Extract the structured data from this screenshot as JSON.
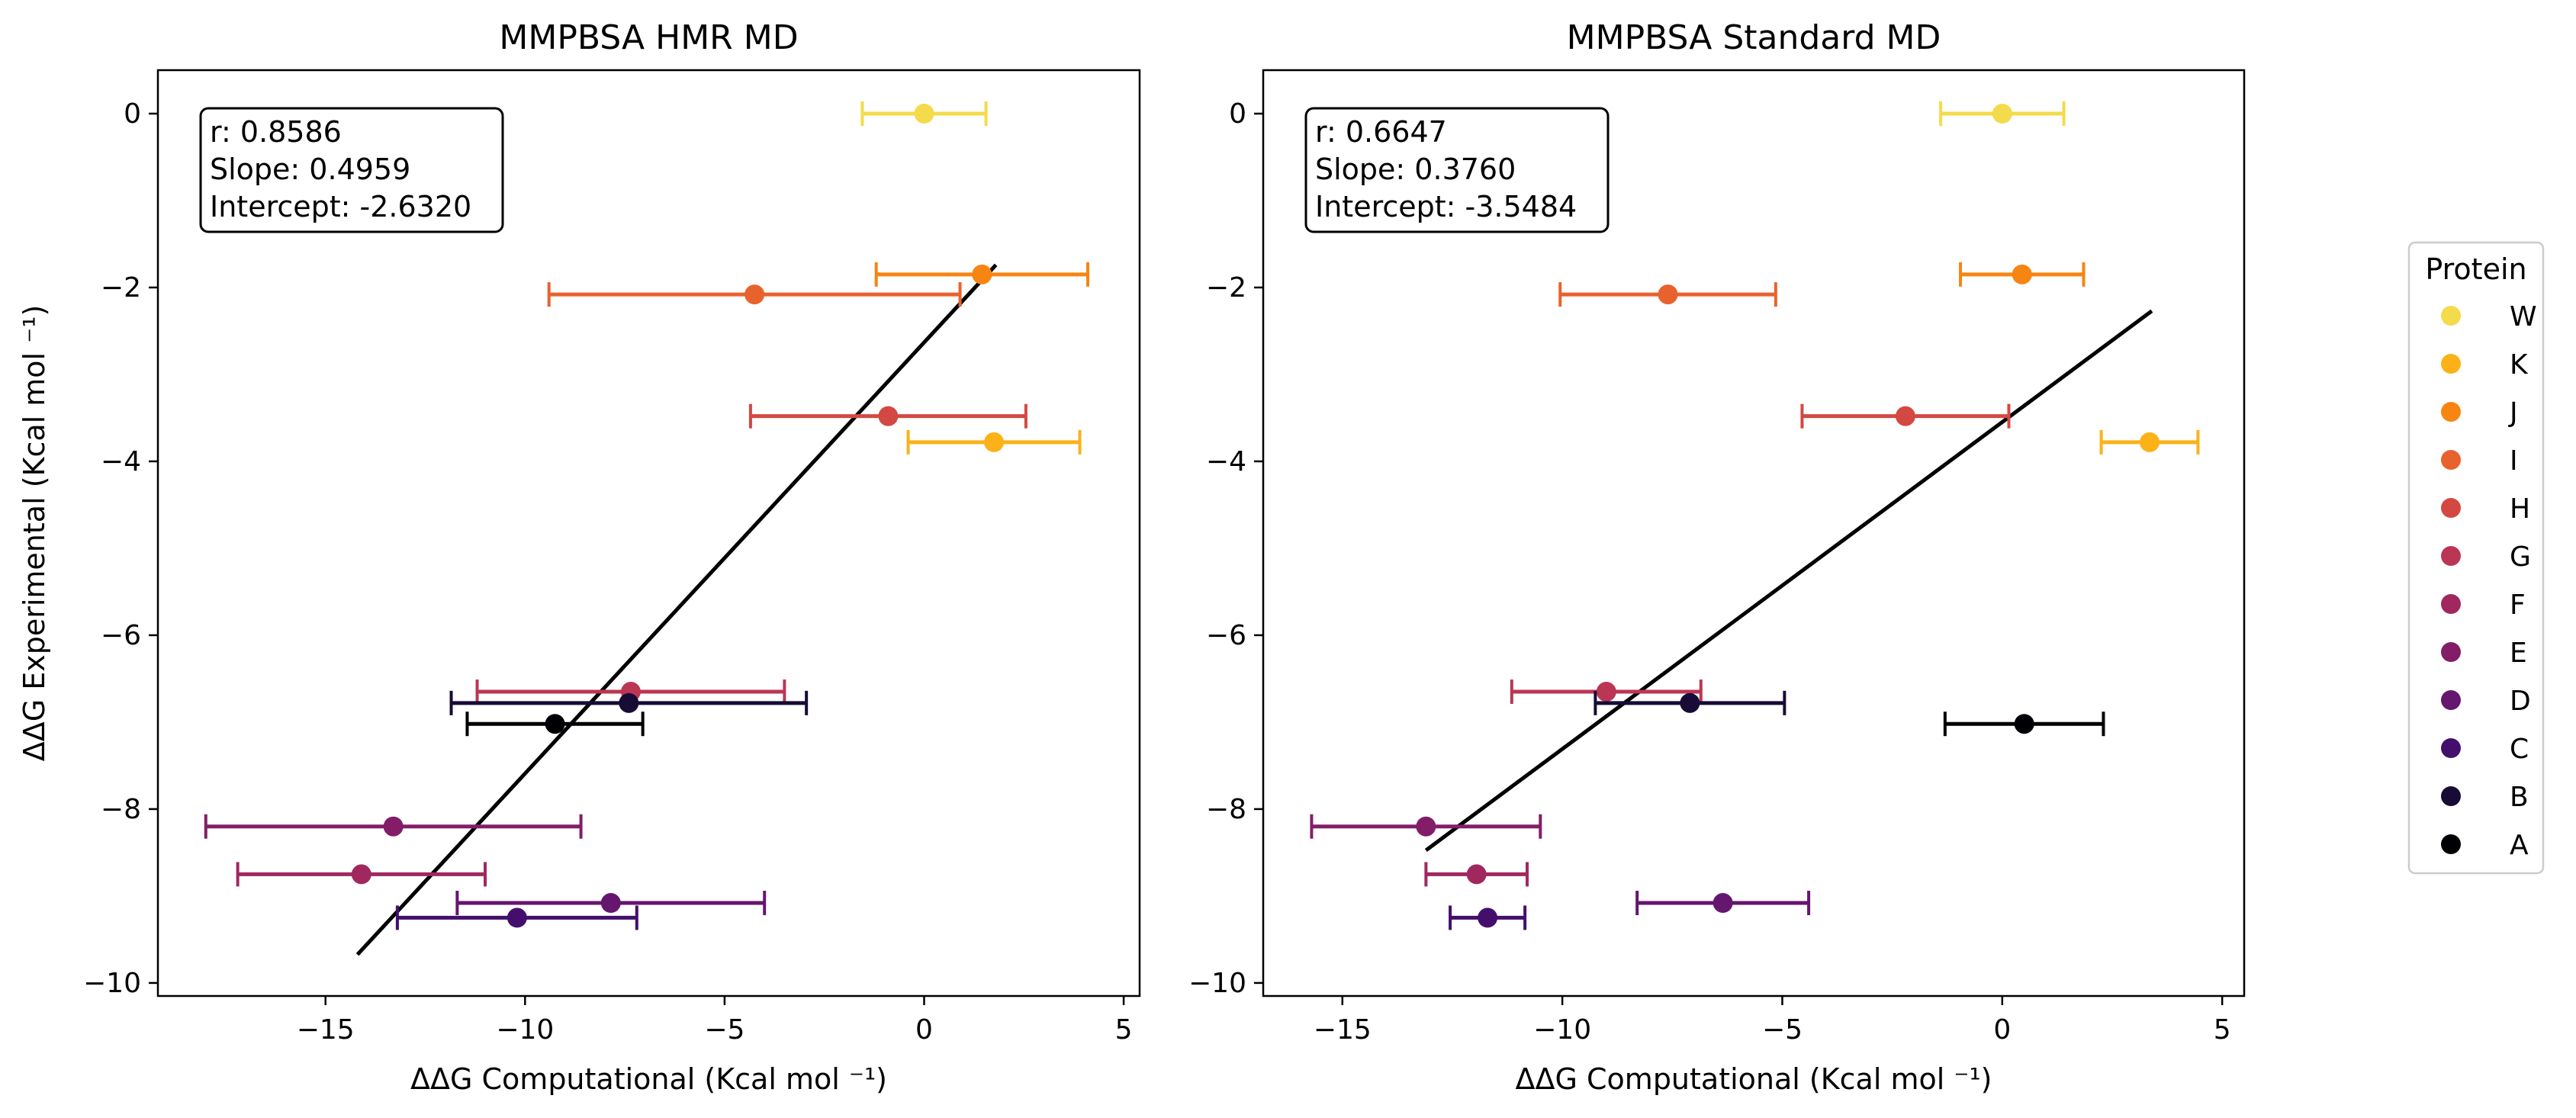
{
  "chart_data": [
    {
      "type": "scatter",
      "title": "MMPBSA HMR MD",
      "xlabel": "ΔΔG Computational (Kcal mol ⁻¹)",
      "ylabel": "ΔΔG Experimental (Kcal mol ⁻¹)",
      "xlim": [
        -19.2,
        5.4
      ],
      "ylim": [
        -10.15,
        0.5
      ],
      "xticks": [
        -15,
        -10,
        -5,
        0,
        5
      ],
      "yticks": [
        0,
        -2,
        -4,
        -6,
        -8,
        -10
      ],
      "grid": false,
      "stats": [
        "r: 0.8586",
        "Slope: 0.4959",
        "Intercept: -2.6320"
      ],
      "fit_line": {
        "x": [
          -14.2,
          1.8
        ]
      },
      "points": [
        {
          "protein": "W",
          "x": 0.0,
          "y": 0.0,
          "xerr": 1.55
        },
        {
          "protein": "K",
          "x": 1.75,
          "y": -3.78,
          "xerr": 2.15
        },
        {
          "protein": "J",
          "x": 1.45,
          "y": -1.85,
          "xerr": 2.65
        },
        {
          "protein": "I",
          "x": -4.25,
          "y": -2.08,
          "xerr": 5.15
        },
        {
          "protein": "H",
          "x": -0.9,
          "y": -3.48,
          "xerr": 3.45
        },
        {
          "protein": "G",
          "x": -7.35,
          "y": -6.65,
          "xerr": 3.85
        },
        {
          "protein": "F",
          "x": -14.1,
          "y": -8.75,
          "xerr": 3.1
        },
        {
          "protein": "E",
          "x": -13.3,
          "y": -8.2,
          "xerr": 4.7
        },
        {
          "protein": "D",
          "x": -7.85,
          "y": -9.08,
          "xerr": 3.85
        },
        {
          "protein": "C",
          "x": -10.2,
          "y": -9.25,
          "xerr": 3.0
        },
        {
          "protein": "B",
          "x": -7.4,
          "y": -6.78,
          "xerr": 4.45
        },
        {
          "protein": "A",
          "x": -9.25,
          "y": -7.02,
          "xerr": 2.2
        }
      ]
    },
    {
      "type": "scatter",
      "title": "MMPBSA Standard MD",
      "xlabel": "ΔΔG Computational (Kcal mol ⁻¹)",
      "ylabel": "",
      "xlim": [
        -16.8,
        5.5
      ],
      "ylim": [
        -10.15,
        0.5
      ],
      "xticks": [
        -15,
        -10,
        -5,
        0,
        5
      ],
      "yticks": [
        0,
        -2,
        -4,
        -6,
        -8,
        -10
      ],
      "grid": false,
      "stats": [
        "r: 0.6647",
        "Slope: 0.3760",
        "Intercept: -3.5484"
      ],
      "fit_line": {
        "x": [
          -13.1,
          3.4
        ]
      },
      "points": [
        {
          "protein": "W",
          "x": 0.0,
          "y": 0.0,
          "xerr": 1.4
        },
        {
          "protein": "K",
          "x": 3.35,
          "y": -3.78,
          "xerr": 1.1
        },
        {
          "protein": "J",
          "x": 0.45,
          "y": -1.85,
          "xerr": 1.4
        },
        {
          "protein": "I",
          "x": -7.6,
          "y": -2.08,
          "xerr": 2.45
        },
        {
          "protein": "H",
          "x": -2.2,
          "y": -3.48,
          "xerr": 2.35
        },
        {
          "protein": "G",
          "x": -9.0,
          "y": -6.65,
          "xerr": 2.15
        },
        {
          "protein": "F",
          "x": -11.95,
          "y": -8.75,
          "xerr": 1.15
        },
        {
          "protein": "E",
          "x": -13.1,
          "y": -8.2,
          "xerr": 2.6
        },
        {
          "protein": "D",
          "x": -6.35,
          "y": -9.08,
          "xerr": 1.95
        },
        {
          "protein": "C",
          "x": -11.7,
          "y": -9.25,
          "xerr": 0.85
        },
        {
          "protein": "B",
          "x": -7.1,
          "y": -6.78,
          "xerr": 2.15
        },
        {
          "protein": "A",
          "x": 0.5,
          "y": -7.02,
          "xerr": 1.8
        }
      ]
    }
  ],
  "legend": {
    "title": "Protein",
    "placement": "right",
    "items": [
      {
        "label": "W",
        "color": "#f3db4b"
      },
      {
        "label": "K",
        "color": "#fbb218"
      },
      {
        "label": "J",
        "color": "#f78512"
      },
      {
        "label": "I",
        "color": "#e8622d"
      },
      {
        "label": "H",
        "color": "#d44842"
      },
      {
        "label": "G",
        "color": "#bb3654"
      },
      {
        "label": "F",
        "color": "#a0285f"
      },
      {
        "label": "E",
        "color": "#831d68"
      },
      {
        "label": "D",
        "color": "#65166e"
      },
      {
        "label": "C",
        "color": "#440f6c"
      },
      {
        "label": "B",
        "color": "#180b35"
      },
      {
        "label": "A",
        "color": "#000004"
      }
    ]
  },
  "fit_line_color": "#000000"
}
